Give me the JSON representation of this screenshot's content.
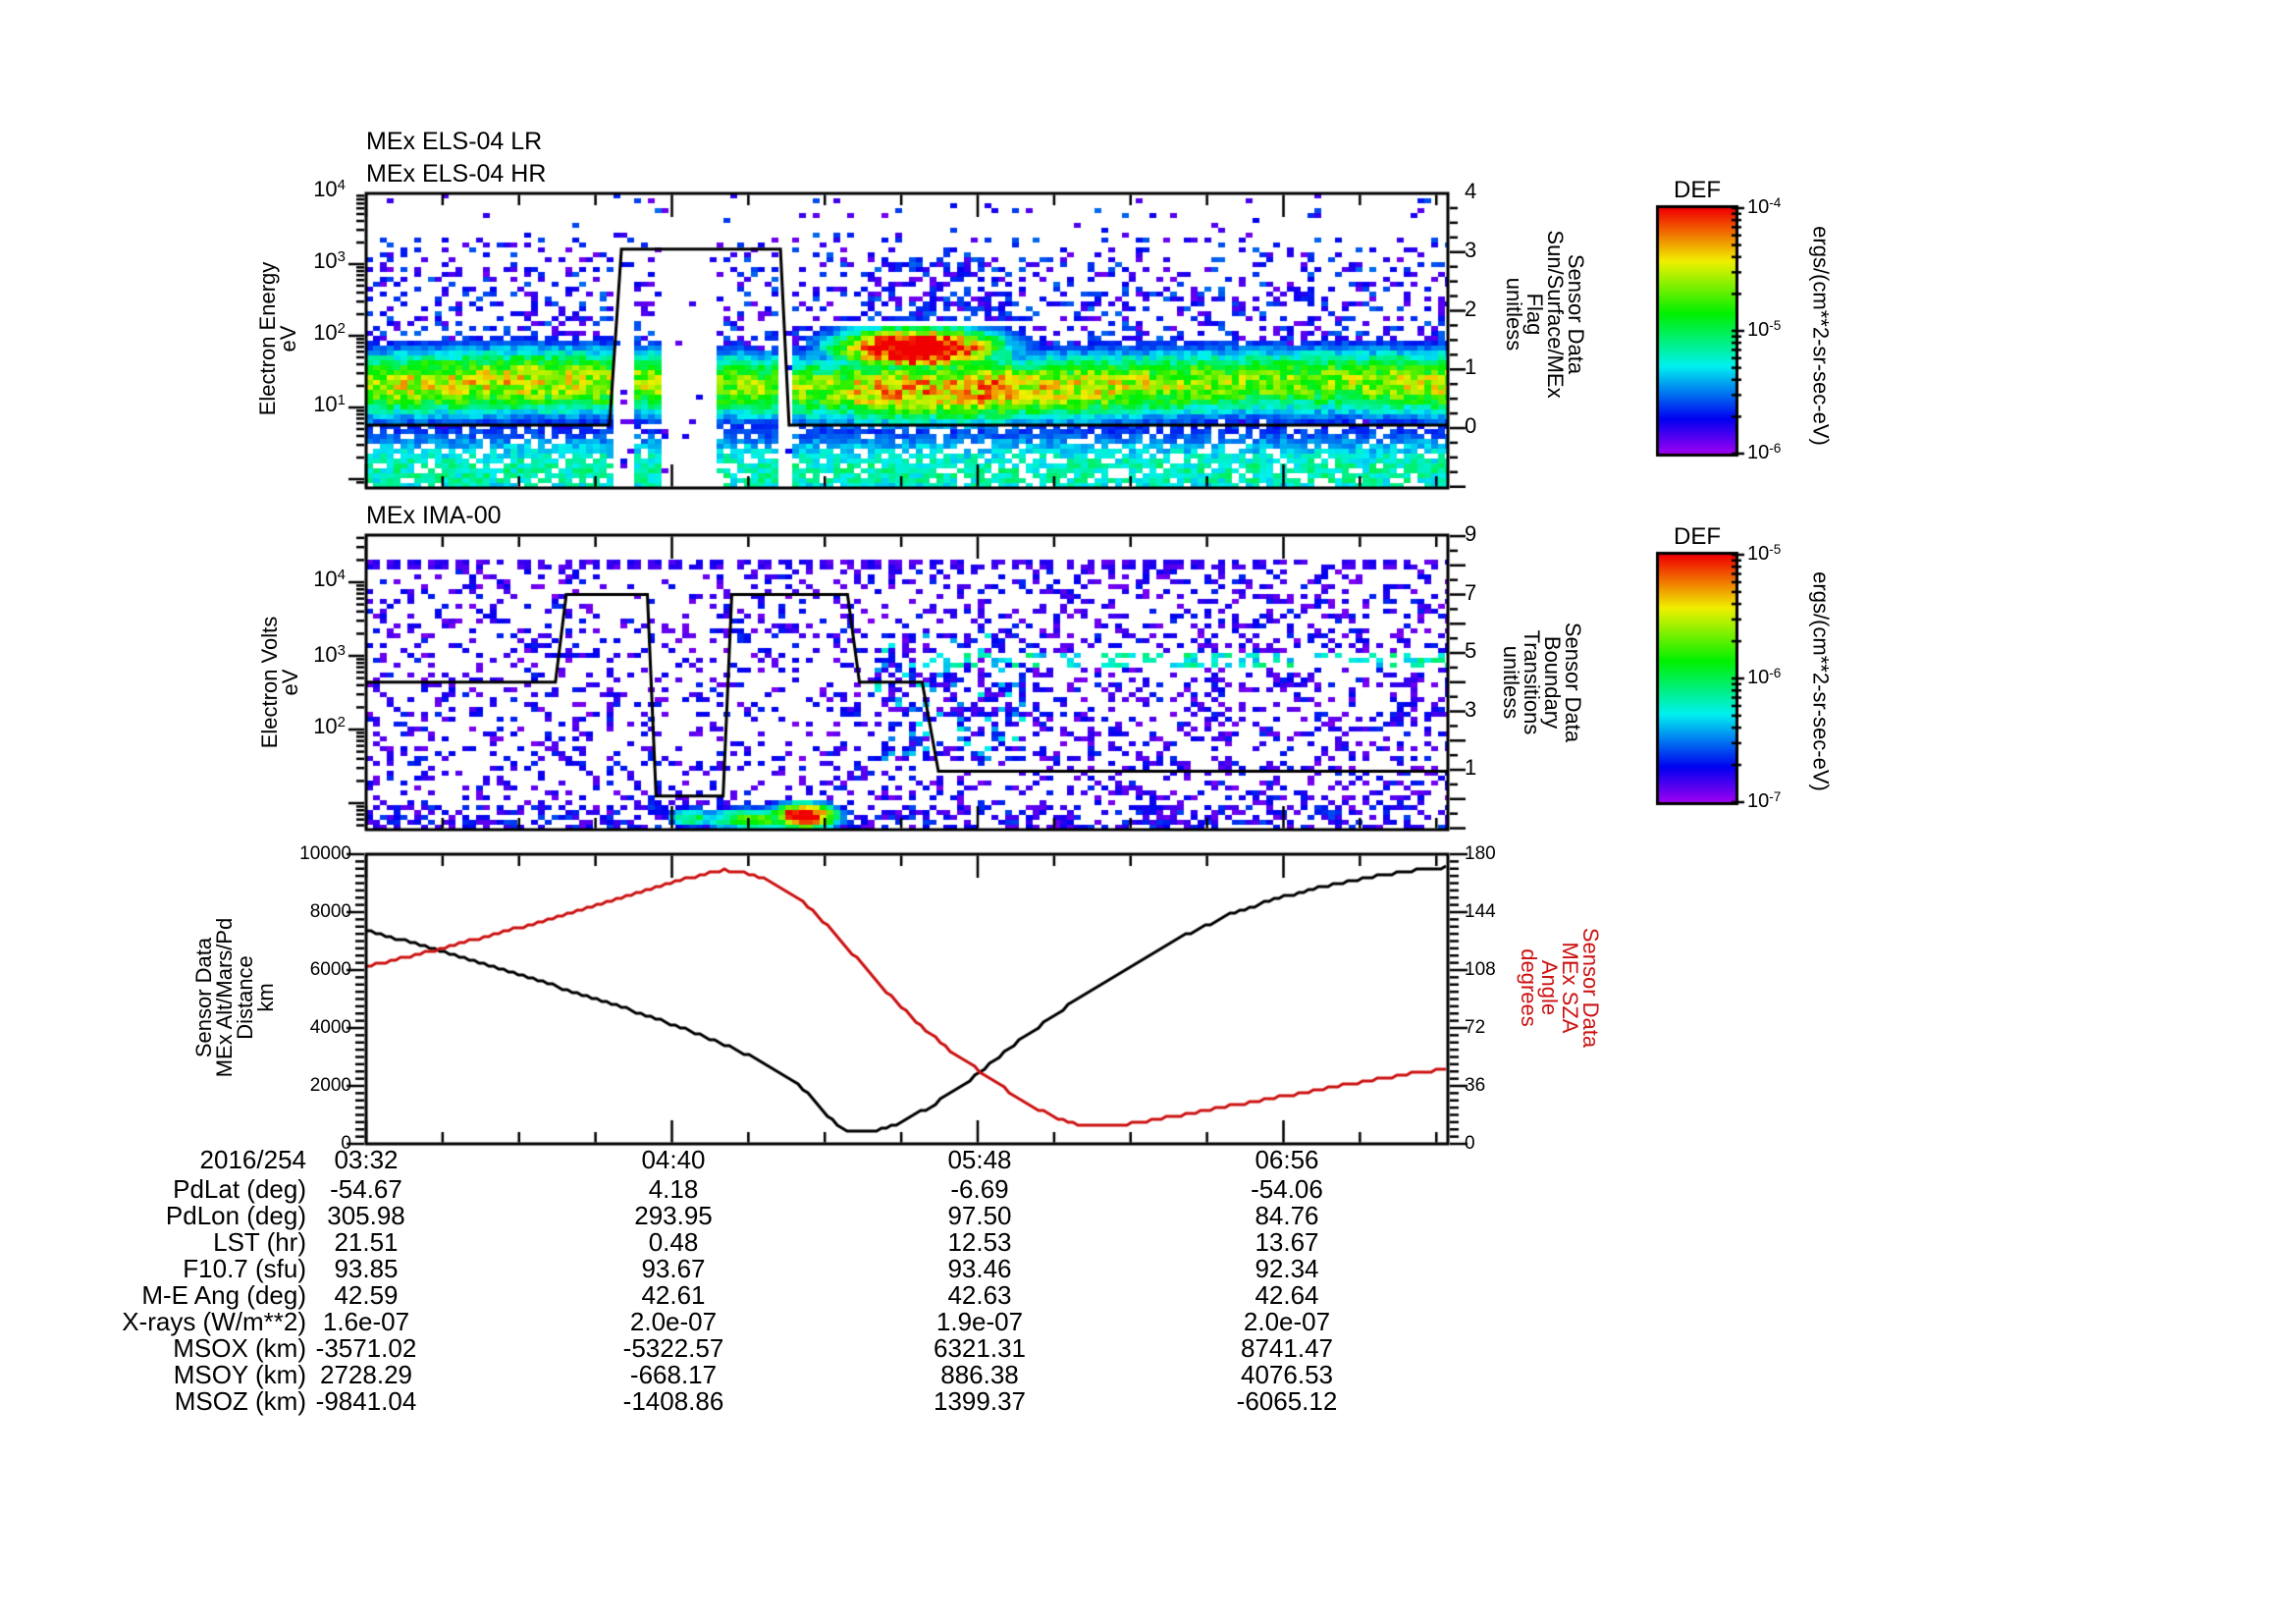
{
  "meta": {
    "bg": "#ffffff",
    "accent_red": "#cc1111",
    "seed": 1234
  },
  "titles": {
    "els": "MEx ELS-04 LR\nMEx ELS-04 HR",
    "ima": "MEx IMA-00"
  },
  "panel1": {
    "ylabel": "Electron Energy\neV",
    "left_ticks": [
      {
        "b": "10",
        "e": "4"
      },
      {
        "b": "10",
        "e": "3"
      },
      {
        "b": "10",
        "e": "2"
      },
      {
        "b": "10",
        "e": "1"
      }
    ],
    "right_label": "Sensor Data\nSun/Surface/MEx\nFlag\nunitless",
    "right_ticks": [
      "4",
      "3",
      "2",
      "1",
      "0"
    ],
    "colorbar": {
      "title": "DEF",
      "unit": "ergs/(cm**2-sr-sec-eV)",
      "ticks": [
        {
          "b": "10",
          "e": "-4"
        },
        {
          "b": "10",
          "e": "-5"
        },
        {
          "b": "10",
          "e": "-6"
        }
      ]
    }
  },
  "panel2": {
    "ylabel": "Electron Volts\neV",
    "left_ticks": [
      {
        "b": "10",
        "e": "4"
      },
      {
        "b": "10",
        "e": "3"
      },
      {
        "b": "10",
        "e": "2"
      }
    ],
    "right_label": "Sensor Data\nBoundary\nTransitions\nunitless",
    "right_ticks": [
      "9",
      "7",
      "5",
      "3",
      "1"
    ],
    "colorbar": {
      "title": "DEF",
      "unit": "ergs/(cm**2-sr-sec-eV)",
      "ticks": [
        {
          "b": "10",
          "e": "-5"
        },
        {
          "b": "10",
          "e": "-6"
        },
        {
          "b": "10",
          "e": "-7"
        }
      ]
    }
  },
  "panel3": {
    "ylabel": "Sensor Data\nMEx Alt/Mars/Pd\nDistance\nkm",
    "left_ticks": [
      "10000",
      "8000",
      "6000",
      "4000",
      "2000",
      "0"
    ],
    "right_label": "Sensor Data\nMEx SZA\nAngle\ndegrees",
    "right_ticks": [
      "180",
      "144",
      "108",
      "72",
      "36",
      "0"
    ]
  },
  "xaxis": {
    "date": "2016/254",
    "labels": [
      "03:32",
      "04:40",
      "05:48",
      "06:56"
    ]
  },
  "table": {
    "rows": [
      {
        "label": "PdLat (deg)",
        "values": [
          "-54.67",
          "4.18",
          "-6.69",
          "-54.06"
        ]
      },
      {
        "label": "PdLon (deg)",
        "values": [
          "305.98",
          "293.95",
          "97.50",
          "84.76"
        ]
      },
      {
        "label": "LST (hr)",
        "values": [
          "21.51",
          "0.48",
          "12.53",
          "13.67"
        ]
      },
      {
        "label": "F10.7 (sfu)",
        "values": [
          "93.85",
          "93.67",
          "93.46",
          "92.34"
        ]
      },
      {
        "label": "M-E Ang (deg)",
        "values": [
          "42.59",
          "42.61",
          "42.63",
          "42.64"
        ]
      },
      {
        "label": "X-rays (W/m**2)",
        "values": [
          "1.6e-07",
          "2.0e-07",
          "1.9e-07",
          "2.0e-07"
        ]
      },
      {
        "label": "MSOX (km)",
        "values": [
          "-3571.02",
          "-5322.57",
          "6321.31",
          "8741.47"
        ]
      },
      {
        "label": "MSOY (km)",
        "values": [
          "2728.29",
          "-668.17",
          "886.38",
          "4076.53"
        ]
      },
      {
        "label": "MSOZ (km)",
        "values": [
          "-9841.04",
          "-1408.86",
          "1399.37",
          "-6065.12"
        ]
      }
    ]
  },
  "chart_data": [
    {
      "type": "heatmap",
      "title": "MEx ELS-04 LR / MEx ELS-04 HR electron energy spectrogram",
      "xlabel": "UT on 2016/254, ticks 03:32 04:40 05:48 06:56",
      "ylabel": "Electron Energy eV (log 1 to 1e4)",
      "color_range_ergs": [
        "1e-6",
        "1e-4"
      ],
      "colorbar_unit": "ergs/(cm**2-sr-sec-eV)",
      "features": {
        "main_band_eV": [
          8,
          60
        ],
        "main_band_level": "green-yellow ~3e-5",
        "speck_background": "sparse purple-blue up to ~2000 eV",
        "red_enhancement": {
          "time_frac": [
            0.46,
            0.56
          ],
          "energy_eV": [
            40,
            180
          ],
          "peak": "~1e-4 red"
        },
        "data_gap_fracs": [
          [
            0.282,
            0.327
          ],
          [
            0.379,
            0.397
          ]
        ],
        "sparse_stripe_frac": [
          0.228,
          0.282
        ],
        "white_artifact_row": {
          "energy_eV": 140,
          "time_frac": [
            0.44,
            0.62
          ]
        }
      },
      "overlay_line": {
        "name": "Sun/Surface/MEx Flag",
        "range": [
          0,
          4
        ],
        "points": [
          [
            0,
            0.05
          ],
          [
            0.225,
            0.05
          ],
          [
            0.236,
            3.05
          ],
          [
            0.383,
            3.05
          ],
          [
            0.391,
            0.05
          ],
          [
            1,
            0.05
          ]
        ]
      }
    },
    {
      "type": "heatmap",
      "title": "MEx IMA-00 ion spectrogram",
      "xlabel": "UT on 2016/254, ticks 03:32 04:40 05:48 06:56",
      "ylabel": "Electron Volts eV (log ~5 to 4e4)",
      "color_range_ergs": [
        "1e-7",
        "1e-5"
      ],
      "colorbar_unit": "ergs/(cm**2-sr-sec-eV)",
      "features": {
        "background": "sparse purple noise ~1e-7 over full range",
        "dotted_row_eV": 17000,
        "low_energy_burst": {
          "time_frac": [
            0.28,
            0.48
          ],
          "energy_eV": [
            5,
            15
          ],
          "peak": "~1e-5 red core near frac 0.40"
        },
        "cyan_dash_row": {
          "time_frac": [
            0.52,
            1.0
          ],
          "energy_eV": [
            750,
            1100
          ]
        },
        "dense_blue_patch": {
          "time_frac": [
            0.47,
            0.61
          ],
          "energy_eV": [
            40,
            2000
          ]
        }
      },
      "overlay_line": {
        "name": "Boundary Transitions",
        "range": [
          0,
          9
        ],
        "points": [
          [
            0,
            4.0
          ],
          [
            0.175,
            4.0
          ],
          [
            0.185,
            7.0
          ],
          [
            0.26,
            7.0
          ],
          [
            0.268,
            0.1
          ],
          [
            0.33,
            0.1
          ],
          [
            0.338,
            7.0
          ],
          [
            0.445,
            7.0
          ],
          [
            0.456,
            4.0
          ],
          [
            0.514,
            4.0
          ],
          [
            0.529,
            0.95
          ],
          [
            1,
            0.95
          ]
        ]
      }
    },
    {
      "type": "line",
      "title": "MEx altitude and solar zenith angle",
      "x_ticks": [
        "03:32",
        "04:40",
        "05:48",
        "06:56"
      ],
      "series": [
        {
          "name": "MEx Alt/Mars/Pd Distance (km)",
          "color": "#000000",
          "axis_range": [
            0,
            10000
          ],
          "points": [
            [
              0,
              7400
            ],
            [
              0.05,
              6850
            ],
            [
              0.1,
              6300
            ],
            [
              0.15,
              5750
            ],
            [
              0.2,
              5150
            ],
            [
              0.25,
              4550
            ],
            [
              0.3,
              3900
            ],
            [
              0.34,
              3300
            ],
            [
              0.37,
              2750
            ],
            [
              0.39,
              2300
            ],
            [
              0.41,
              1700
            ],
            [
              0.425,
              1000
            ],
            [
              0.44,
              520
            ],
            [
              0.455,
              400
            ],
            [
              0.47,
              430
            ],
            [
              0.485,
              600
            ],
            [
              0.5,
              850
            ],
            [
              0.52,
              1250
            ],
            [
              0.545,
              1850
            ],
            [
              0.57,
              2550
            ],
            [
              0.6,
              3450
            ],
            [
              0.64,
              4550
            ],
            [
              0.68,
              5550
            ],
            [
              0.72,
              6450
            ],
            [
              0.76,
              7250
            ],
            [
              0.8,
              7950
            ],
            [
              0.84,
              8450
            ],
            [
              0.88,
              8850
            ],
            [
              0.92,
              9150
            ],
            [
              0.96,
              9400
            ],
            [
              1,
              9550
            ]
          ]
        },
        {
          "name": "MEx SZA (degrees)",
          "color": "#cc1111",
          "axis_range": [
            0,
            180
          ],
          "points": [
            [
              0,
              110
            ],
            [
              0.05,
              118
            ],
            [
              0.1,
              127
            ],
            [
              0.15,
              136
            ],
            [
              0.2,
              146
            ],
            [
              0.25,
              156
            ],
            [
              0.28,
              162
            ],
            [
              0.31,
              167
            ],
            [
              0.33,
              170
            ],
            [
              0.35,
              169
            ],
            [
              0.37,
              164
            ],
            [
              0.39,
              157
            ],
            [
              0.41,
              147
            ],
            [
              0.43,
              133
            ],
            [
              0.45,
              118
            ],
            [
              0.47,
              103
            ],
            [
              0.49,
              88
            ],
            [
              0.51,
              75
            ],
            [
              0.54,
              58
            ],
            [
              0.57,
              44
            ],
            [
              0.6,
              30
            ],
            [
              0.62,
              22
            ],
            [
              0.64,
              16
            ],
            [
              0.66,
              12
            ],
            [
              0.68,
              11
            ],
            [
              0.7,
              12
            ],
            [
              0.73,
              15
            ],
            [
              0.77,
              20
            ],
            [
              0.81,
              25
            ],
            [
              0.86,
              31
            ],
            [
              0.9,
              36
            ],
            [
              0.95,
              42
            ],
            [
              1,
              47
            ]
          ]
        }
      ]
    }
  ]
}
